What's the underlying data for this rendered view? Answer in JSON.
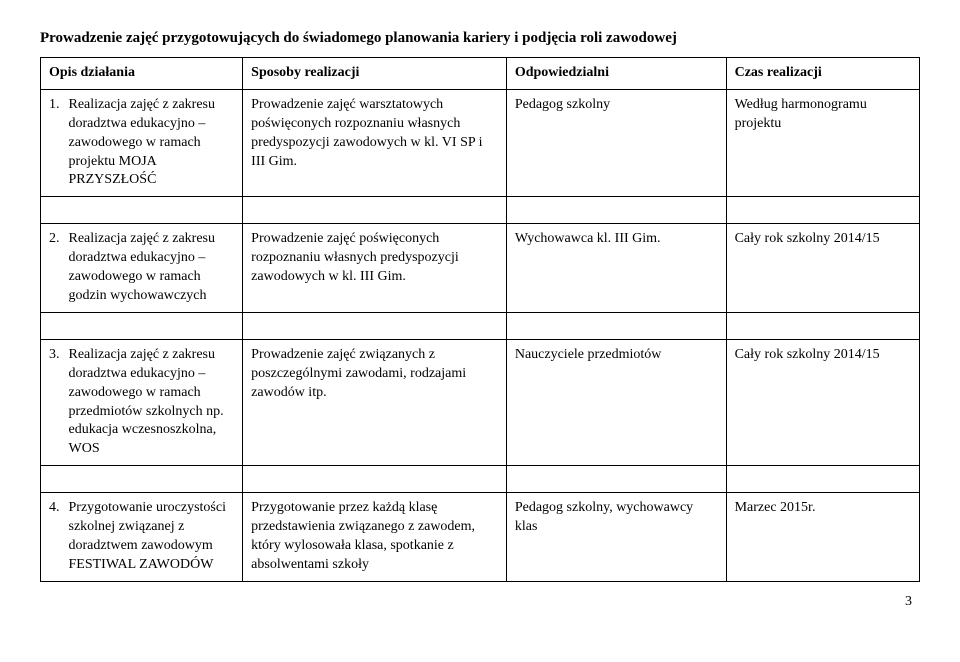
{
  "heading": "Prowadzenie zajęć przygotowujących do świadomego planowania kariery i podjęcia roli zawodowej",
  "columns": {
    "c1": "Opis działania",
    "c2": "Sposoby realizacji",
    "c3": "Odpowiedzialni",
    "c4": "Czas realizacji"
  },
  "rows": [
    {
      "num": "1.",
      "opis": "Realizacja zajęć z zakresu doradztwa edukacyjno – zawodowego w ramach projektu MOJA PRZYSZŁOŚĆ",
      "sposoby": "Prowadzenie zajęć warsztatowych poświęconych rozpoznaniu własnych predyspozycji zawodowych w kl. VI SP i III Gim.",
      "odpowiedzialni": "Pedagog szkolny",
      "czas": "Według harmonogramu projektu"
    },
    {
      "num": "2.",
      "opis": "Realizacja zajęć z zakresu doradztwa edukacyjno – zawodowego w ramach godzin wychowawczych",
      "sposoby": "Prowadzenie zajęć poświęconych rozpoznaniu własnych predyspozycji zawodowych w kl. III Gim.",
      "odpowiedzialni": "Wychowawca kl. III Gim.",
      "czas": "Cały rok szkolny 2014/15"
    },
    {
      "num": "3.",
      "opis": "Realizacja zajęć z zakresu doradztwa edukacyjno – zawodowego w ramach przedmiotów szkolnych np. edukacja wczesnoszkolna, WOS",
      "sposoby": "Prowadzenie zajęć związanych z poszczególnymi zawodami, rodzajami zawodów itp.",
      "odpowiedzialni": "Nauczyciele przedmiotów",
      "czas": "Cały rok szkolny 2014/15"
    },
    {
      "num": "4.",
      "opis": "Przygotowanie uroczystości szkolnej związanej z doradztwem zawodowym FESTIWAL ZAWODÓW",
      "sposoby": "Przygotowanie przez każdą klasę przedstawienia związanego z zawodem, który wylosowała klasa, spotkanie z absolwentami szkoły",
      "odpowiedzialni": "Pedagog szkolny, wychowawcy klas",
      "czas": "Marzec 2015r."
    }
  ],
  "page_number": "3"
}
